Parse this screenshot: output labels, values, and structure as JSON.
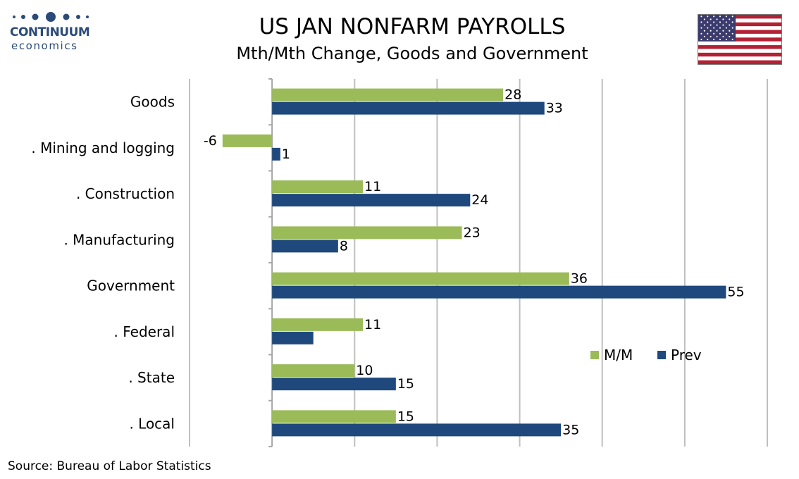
{
  "header": {
    "title": "US JAN NONFARM PAYROLLS",
    "subtitle": "Mth/Mth Change, Goods and Government"
  },
  "logo": {
    "name": "CONTINUUM",
    "sub": "economics",
    "color": "#2b4a78"
  },
  "flag": {
    "name": "us-flag-icon"
  },
  "source": "Source: Bureau of Labor Statistics",
  "chart_data": {
    "type": "bar",
    "orientation": "horizontal",
    "categories": [
      "Goods",
      ". Mining and logging",
      ". Construction",
      ". Manufacturing",
      "Government",
      ". Federal",
      ". State",
      ". Local"
    ],
    "series": [
      {
        "name": "M/M",
        "color": "#9bbb59",
        "values": [
          28,
          -6,
          11,
          23,
          36,
          11,
          10,
          15
        ],
        "labels": [
          "28",
          "-6",
          "11",
          "23",
          "36",
          "11",
          "10",
          "15"
        ]
      },
      {
        "name": "Prev",
        "color": "#1f497d",
        "values": [
          33,
          1,
          24,
          8,
          55,
          5,
          15,
          35
        ],
        "labels": [
          "33",
          "1",
          "24",
          "8",
          "55",
          "",
          "15",
          "35"
        ]
      }
    ],
    "xlim": [
      -10,
      60
    ],
    "grid": true,
    "legend_position": "right"
  }
}
